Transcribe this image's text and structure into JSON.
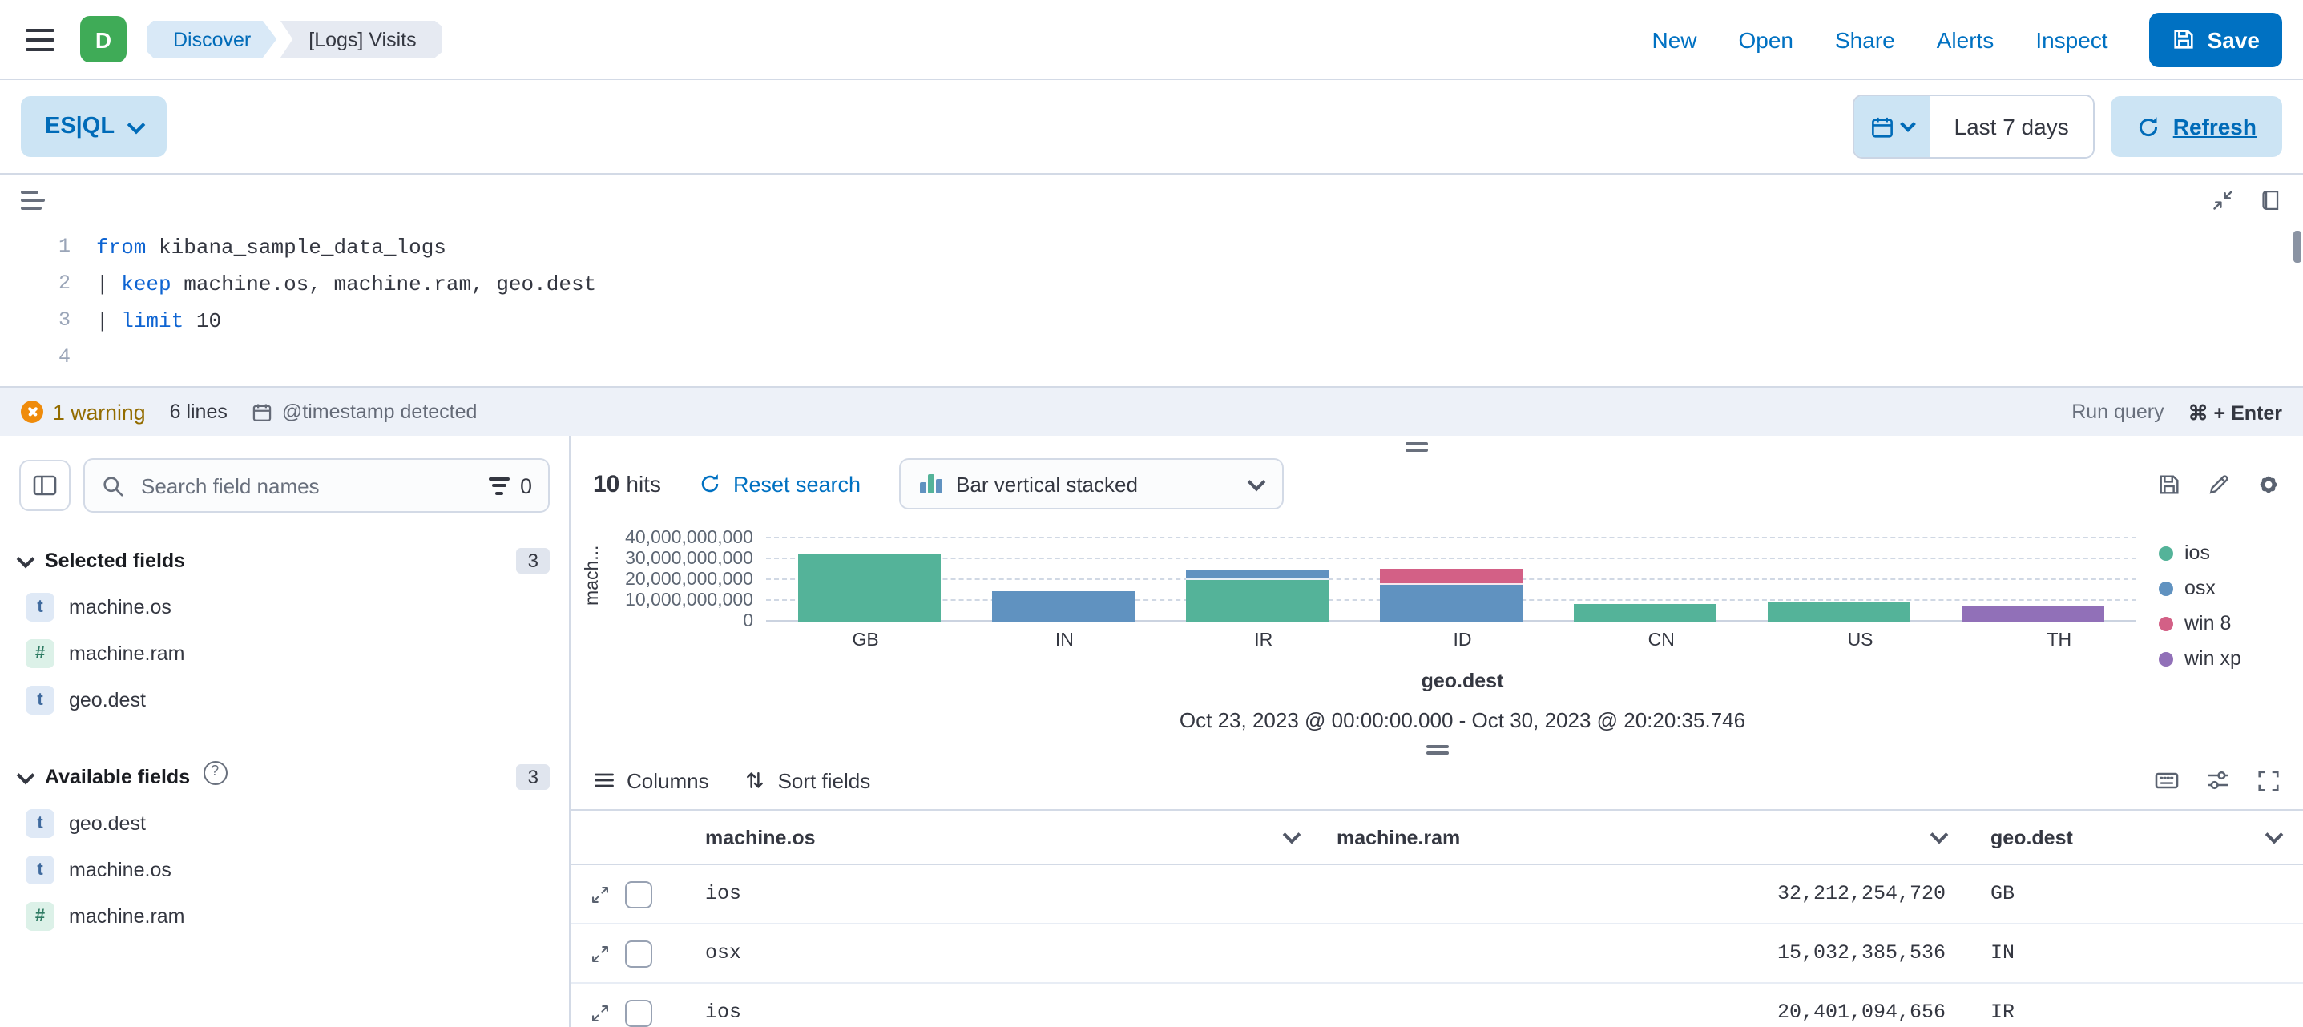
{
  "colors": {
    "primary": "#0071c2",
    "primary_light_bg": "#cce4f4",
    "logo_green": "#3fab57",
    "warning_icon": "#ef8b0b",
    "border": "#d3dae6"
  },
  "header": {
    "logo_letter": "D",
    "breadcrumbs": [
      "Discover",
      "[Logs] Visits"
    ],
    "links": [
      "New",
      "Open",
      "Share",
      "Alerts",
      "Inspect"
    ],
    "save_label": "Save"
  },
  "querybar": {
    "esql_label": "ES|QL",
    "date_range": "Last 7 days",
    "refresh_label": "Refresh"
  },
  "editor": {
    "lines": [
      {
        "num": "1",
        "tokens": [
          {
            "t": "from"
          },
          {
            "t": " kibana_sample_data_logs"
          }
        ]
      },
      {
        "num": "2",
        "tokens": [
          {
            "t": "| "
          },
          {
            "t": "keep"
          },
          {
            "t": " machine.os, machine.ram, geo.dest"
          }
        ]
      },
      {
        "num": "3",
        "tokens": [
          {
            "t": "| "
          },
          {
            "t": "limit"
          },
          {
            "t": " 10"
          }
        ]
      },
      {
        "num": "4"
      }
    ],
    "footer": {
      "warning_count": "1 warning",
      "line_count": "6 lines",
      "timestamp_note": "@timestamp detected",
      "run_query": "Run query",
      "run_shortcut": "⌘ + Enter"
    }
  },
  "sidebar": {
    "search_placeholder": "Search field names",
    "filter_count": "0",
    "token_letters": {
      "keyword": "t",
      "number": "#"
    },
    "selected_fields": {
      "title": "Selected fields",
      "count": "3",
      "fields": [
        {
          "name": "machine.os",
          "type": "keyword"
        },
        {
          "name": "machine.ram",
          "type": "number"
        },
        {
          "name": "geo.dest",
          "type": "keyword"
        }
      ]
    },
    "available_fields": {
      "title": "Available fields",
      "count": "3",
      "fields": [
        {
          "name": "geo.dest",
          "type": "keyword"
        },
        {
          "name": "machine.os",
          "type": "keyword"
        },
        {
          "name": "machine.ram",
          "type": "number"
        }
      ]
    }
  },
  "results": {
    "hits_count": "10",
    "hits_label": "hits",
    "reset_label": "Reset search",
    "chart_type_label": "Bar vertical stacked",
    "time_span": "Oct 23, 2023 @ 00:00:00.000 - Oct 30, 2023 @ 20:20:35.746"
  },
  "chart_data": {
    "type": "bar",
    "stacked": true,
    "title": "",
    "xlabel": "geo.dest",
    "ylabel": "mach...",
    "categories": [
      "GB",
      "IN",
      "IR",
      "ID",
      "CN",
      "US",
      "TH"
    ],
    "series": [
      {
        "name": "ios",
        "color": "#54B399",
        "values": [
          32212254720,
          0,
          20401094656,
          0,
          8200000000,
          9400000000,
          0
        ]
      },
      {
        "name": "osx",
        "color": "#6092C0",
        "values": [
          0,
          15032385536,
          3300000000,
          17500000000,
          0,
          0,
          0
        ]
      },
      {
        "name": "win 8",
        "color": "#D36086",
        "values": [
          0,
          0,
          0,
          7000000000,
          0,
          0,
          0
        ]
      },
      {
        "name": "win xp",
        "color": "#9170B8",
        "values": [
          0,
          0,
          0,
          0,
          0,
          0,
          8100000000
        ]
      }
    ],
    "ylim": [
      0,
      45000000000
    ],
    "yticks": [
      0,
      10000000000,
      20000000000,
      30000000000,
      40000000000
    ],
    "ytick_labels": [
      "0",
      "10,000,000,000",
      "20,000,000,000",
      "30,000,000,000",
      "40,000,000,000"
    ],
    "legend_position": "right",
    "grid": "horizontal-dashed"
  },
  "grid": {
    "columns_label": "Columns",
    "sort_label": "Sort fields",
    "headers": [
      "machine.os",
      "machine.ram",
      "geo.dest"
    ],
    "rows": [
      {
        "machine_os": "ios",
        "machine_ram": "32,212,254,720",
        "geo_dest": "GB"
      },
      {
        "machine_os": "osx",
        "machine_ram": "15,032,385,536",
        "geo_dest": "IN"
      },
      {
        "machine_os": "ios",
        "machine_ram": "20,401,094,656",
        "geo_dest": "IR"
      }
    ]
  }
}
